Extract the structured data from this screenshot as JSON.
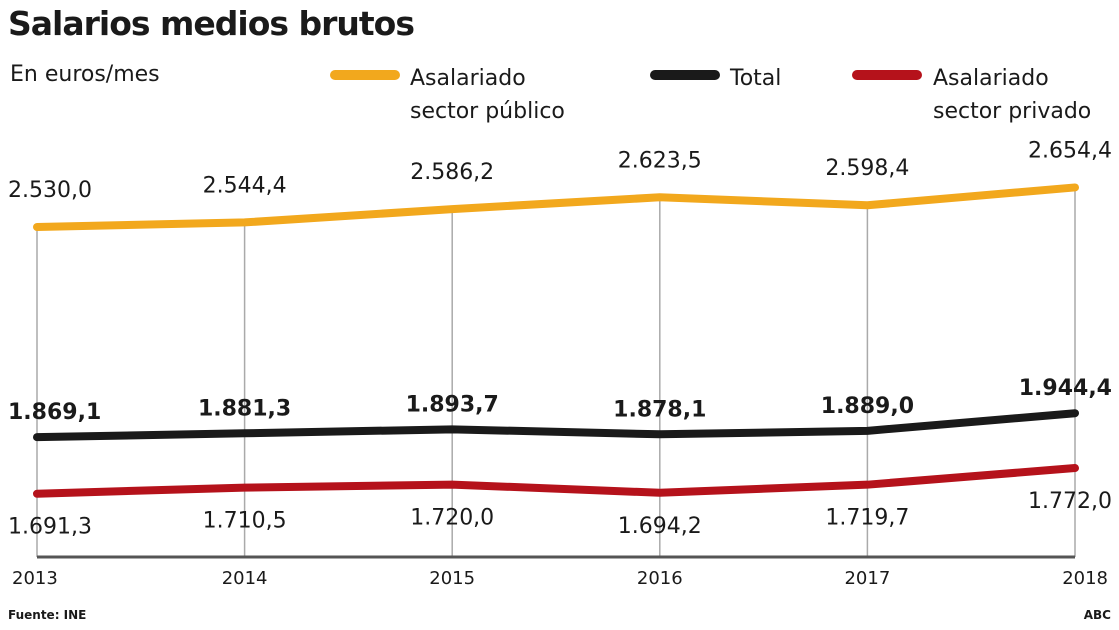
{
  "chart_data": {
    "type": "line",
    "title": "Salarios medios brutos",
    "ylabel": "En euros/mes",
    "categories": [
      "2013",
      "2014",
      "2015",
      "2016",
      "2017",
      "2018"
    ],
    "series": [
      {
        "name": "Asalariado sector público",
        "color": "#f2a81d",
        "values": [
          2530.0,
          2544.4,
          2586.2,
          2623.5,
          2598.4,
          2654.4
        ],
        "labels": [
          "2.530,0",
          "2.544,4",
          "2.586,2",
          "2.623,5",
          "2.598,4",
          "2.654,4"
        ]
      },
      {
        "name": "Total",
        "color": "#1a1a1a",
        "values": [
          1869.1,
          1881.3,
          1893.7,
          1878.1,
          1889.0,
          1944.4
        ],
        "labels": [
          "1.869,1",
          "1.881,3",
          "1.893,7",
          "1.878,1",
          "1.889,0",
          "1.944,4"
        ]
      },
      {
        "name": "Asalariado sector privado",
        "color": "#b5121b",
        "values": [
          1691.3,
          1710.5,
          1720.0,
          1694.2,
          1719.7,
          1772.0
        ],
        "labels": [
          "1.691,3",
          "1.710,5",
          "1.720,0",
          "1.694,2",
          "1.719,7",
          "1.772,0"
        ]
      }
    ],
    "grid": "vertical lines at each year",
    "legend": "top"
  },
  "legend": {
    "public_line1": "Asalariado",
    "public_line2": "sector público",
    "total": "Total",
    "private_line1": "Asalariado",
    "private_line2": "sector privado"
  },
  "footer": {
    "source": "Fuente: INE",
    "brand": "ABC"
  }
}
